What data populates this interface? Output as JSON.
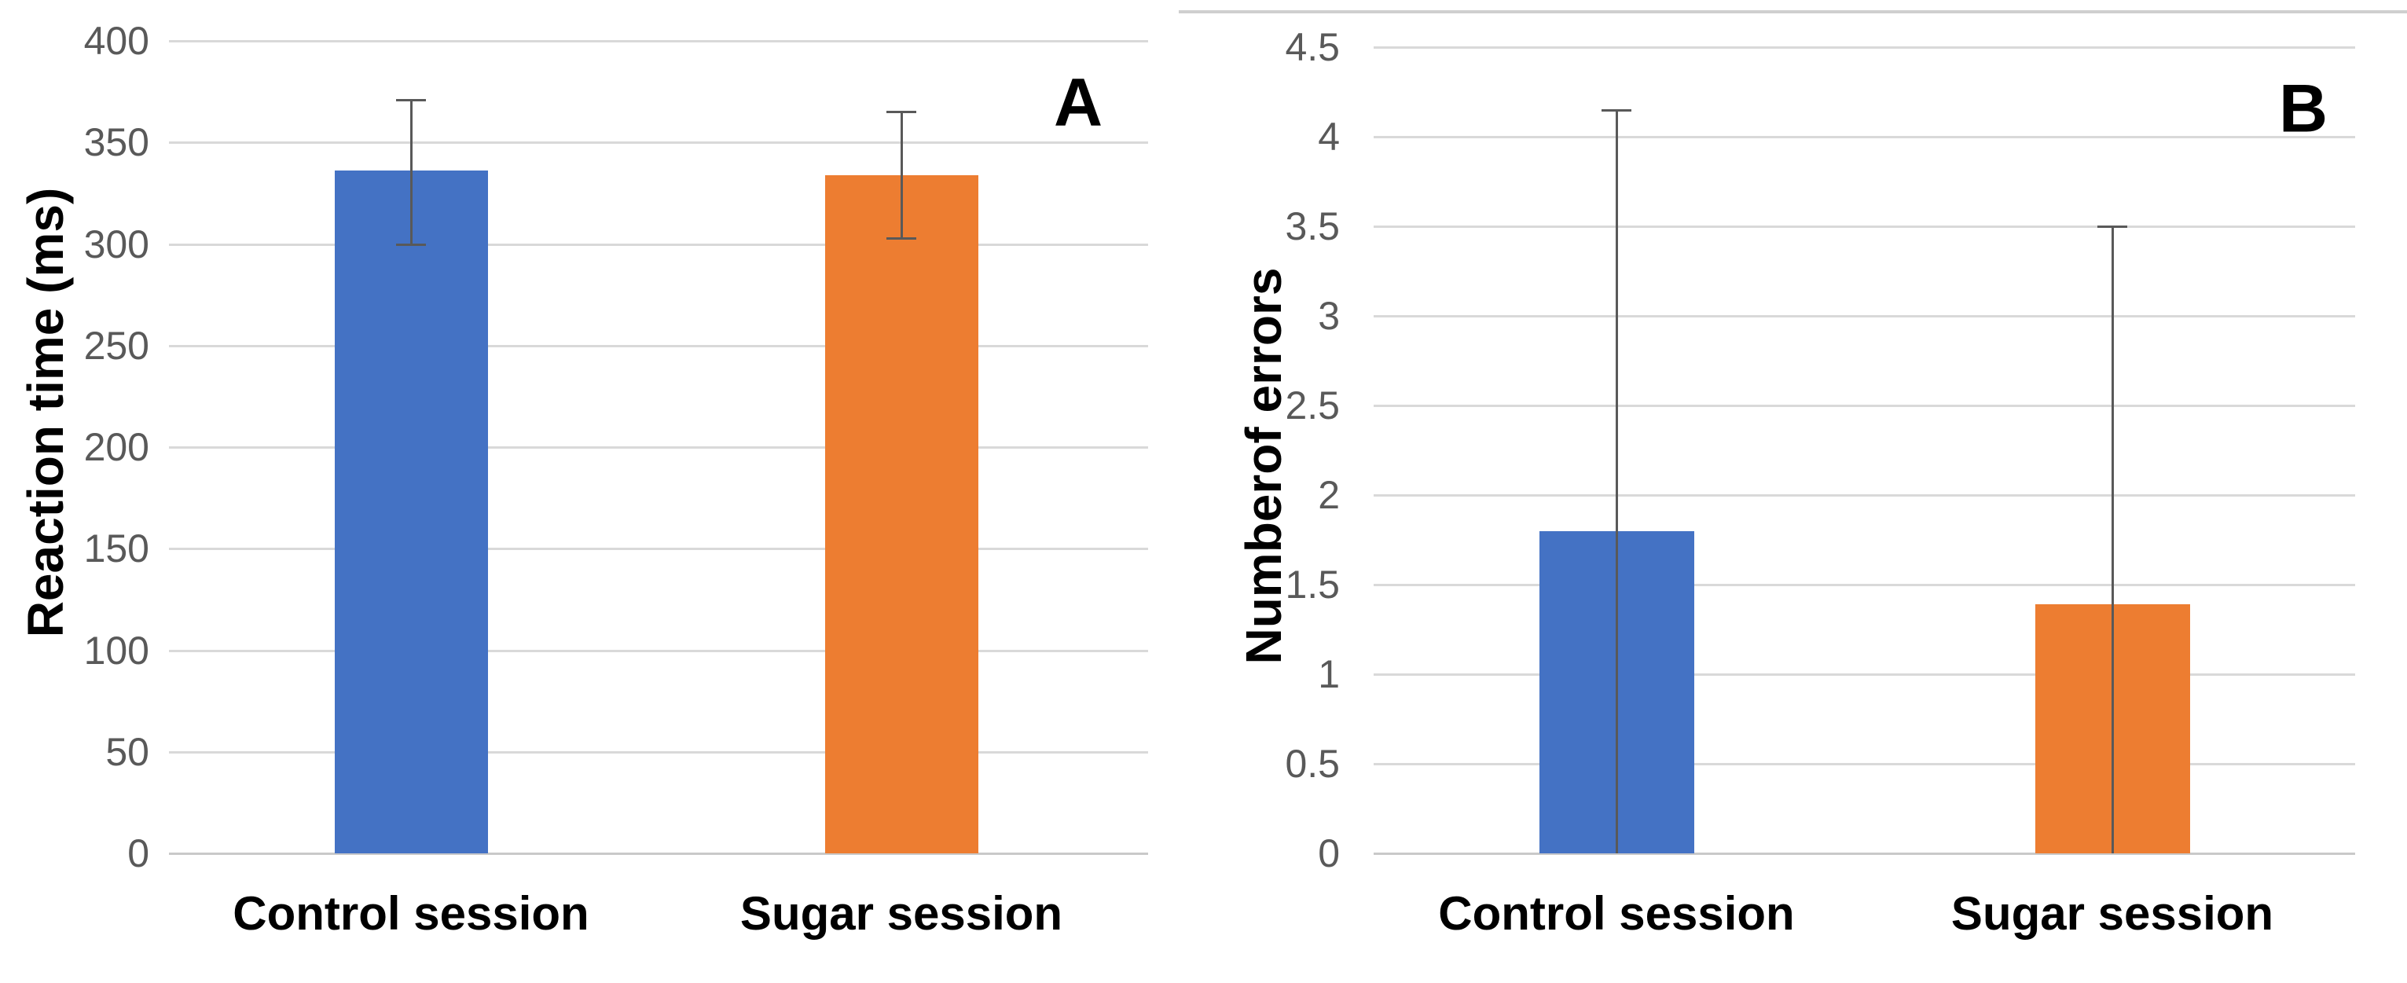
{
  "figure": {
    "background": "#ffffff",
    "gridline_color": "#d9d9d9",
    "zero_line_color": "#c9c9c9",
    "error_bar_color": "#595959",
    "tick_label_color": "#595959"
  },
  "chart_data": [
    {
      "type": "bar",
      "panel_label": "A",
      "ylabel": "Reaction time (ms)",
      "xlabel": "",
      "categories": [
        "Control session",
        "Sugar session"
      ],
      "values": [
        336,
        334
      ],
      "error_bars": [
        {
          "top": 371,
          "bottom": 300
        },
        {
          "top": 365,
          "bottom": 303
        }
      ],
      "bar_colors": [
        "#4472C4",
        "#ED7D31"
      ],
      "ylim": [
        0,
        400
      ],
      "ytick_step": 50,
      "yticks": [
        400,
        350,
        300,
        250,
        200,
        150,
        100,
        50,
        0
      ],
      "grid": true,
      "legend": "none"
    },
    {
      "type": "bar",
      "panel_label": "B",
      "ylabel": "Numberof errors",
      "xlabel": "",
      "categories": [
        "Control session",
        "Sugar session"
      ],
      "values": [
        1.8,
        1.39
      ],
      "error_bars": [
        {
          "top": 4.15,
          "bottom": 0
        },
        {
          "top": 3.5,
          "bottom": 0
        }
      ],
      "bar_colors": [
        "#4472C4",
        "#ED7D31"
      ],
      "ylim": [
        0,
        4.5
      ],
      "ytick_step": 0.5,
      "yticks": [
        4.5,
        4,
        3.5,
        3,
        2.5,
        2,
        1.5,
        1,
        0.5,
        0
      ],
      "grid": true,
      "legend": "none"
    }
  ]
}
